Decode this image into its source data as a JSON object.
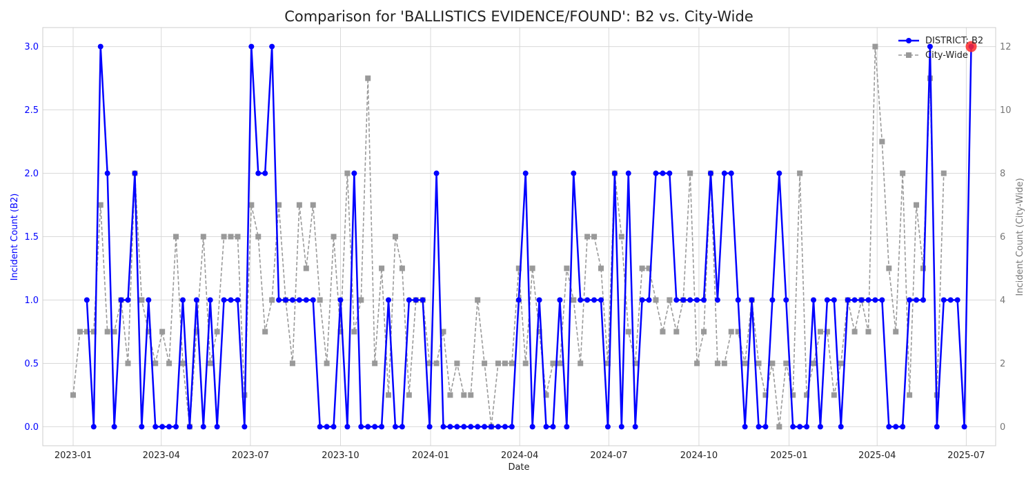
{
  "chart_data": {
    "type": "line",
    "title": "Comparison for 'BALLISTICS EVIDENCE/FOUND': B2 vs. City-Wide",
    "xlabel": "Date",
    "ylabel_left": "Incident Count (B2)",
    "ylabel_right": "Incident Count (City-Wide)",
    "grid": true,
    "legend_position": "top-right",
    "x_start": "2023-01-01",
    "x_step_days": 7,
    "xlim": [
      "2022-12-01",
      "2025-07-31"
    ],
    "x_ticks": [
      {
        "date": "2023-01-01",
        "label": "2023-01"
      },
      {
        "date": "2023-04-01",
        "label": "2023-04"
      },
      {
        "date": "2023-07-01",
        "label": "2023-07"
      },
      {
        "date": "2023-10-01",
        "label": "2023-10"
      },
      {
        "date": "2024-01-01",
        "label": "2024-01"
      },
      {
        "date": "2024-04-01",
        "label": "2024-04"
      },
      {
        "date": "2024-07-01",
        "label": "2024-07"
      },
      {
        "date": "2024-10-01",
        "label": "2024-10"
      },
      {
        "date": "2025-01-01",
        "label": "2025-01"
      },
      {
        "date": "2025-04-01",
        "label": "2025-04"
      },
      {
        "date": "2025-07-01",
        "label": "2025-07"
      }
    ],
    "ylim_left": [
      -0.15,
      3.15
    ],
    "yticks_left": [
      "0.0",
      "0.5",
      "1.0",
      "1.5",
      "2.0",
      "2.5",
      "3.0"
    ],
    "ylim_right": [
      -0.6,
      12.6
    ],
    "yticks_right": [
      "0",
      "2",
      "4",
      "6",
      "8",
      "10",
      "12"
    ],
    "series": [
      {
        "name": "DISTRICT: B2",
        "axis": "left",
        "color": "#0000ff",
        "values": [
          null,
          null,
          1,
          0,
          3,
          2,
          0,
          1,
          1,
          2,
          0,
          1,
          0,
          0,
          0,
          0,
          1,
          0,
          1,
          0,
          1,
          0,
          1,
          1,
          1,
          0,
          3,
          2,
          2,
          3,
          1,
          1,
          1,
          1,
          1,
          1,
          0,
          0,
          0,
          1,
          0,
          2,
          0,
          0,
          0,
          0,
          1,
          0,
          0,
          1,
          1,
          1,
          0,
          2,
          0,
          0,
          0,
          0,
          0,
          0,
          0,
          0,
          0,
          0,
          0,
          1,
          2,
          0,
          1,
          0,
          0,
          1,
          0,
          2,
          1,
          1,
          1,
          1,
          0,
          2,
          0,
          2,
          0,
          1,
          1,
          2,
          2,
          2,
          1,
          1,
          1,
          1,
          1,
          2,
          1,
          2,
          2,
          1,
          0,
          1,
          0,
          0,
          1,
          2,
          1,
          0,
          0,
          0,
          1,
          0,
          1,
          1,
          0,
          1,
          1,
          1,
          1,
          1,
          1,
          0,
          0,
          0,
          1,
          1,
          1,
          3,
          0,
          1,
          1,
          1,
          0,
          3
        ]
      },
      {
        "name": "City-Wide",
        "axis": "right",
        "color": "#999999",
        "values": [
          1,
          3,
          3,
          3,
          7,
          3,
          3,
          4,
          2,
          8,
          4,
          3,
          2,
          3,
          2,
          6,
          2,
          0,
          3,
          6,
          2,
          3,
          6,
          6,
          6,
          1,
          7,
          6,
          3,
          4,
          7,
          4,
          2,
          7,
          5,
          7,
          4,
          2,
          6,
          3,
          8,
          3,
          4,
          11,
          2,
          5,
          1,
          6,
          5,
          1,
          4,
          4,
          2,
          2,
          3,
          1,
          2,
          1,
          1,
          4,
          2,
          0,
          2,
          2,
          2,
          5,
          2,
          5,
          3,
          1,
          2,
          2,
          5,
          4,
          2,
          6,
          6,
          5,
          2,
          8,
          6,
          3,
          2,
          5,
          5,
          4,
          3,
          4,
          3,
          4,
          8,
          2,
          3,
          8,
          2,
          2,
          3,
          3,
          2,
          4,
          2,
          1,
          2,
          0,
          2,
          1,
          8,
          1,
          2,
          3,
          3,
          1,
          2,
          4,
          3,
          4,
          3,
          12,
          9,
          5,
          3,
          8,
          1,
          7,
          5,
          11,
          1,
          8
        ]
      }
    ],
    "highlight_marker": {
      "series": "DISTRICT: B2",
      "index": 131,
      "color": "#ff2a2a"
    }
  }
}
